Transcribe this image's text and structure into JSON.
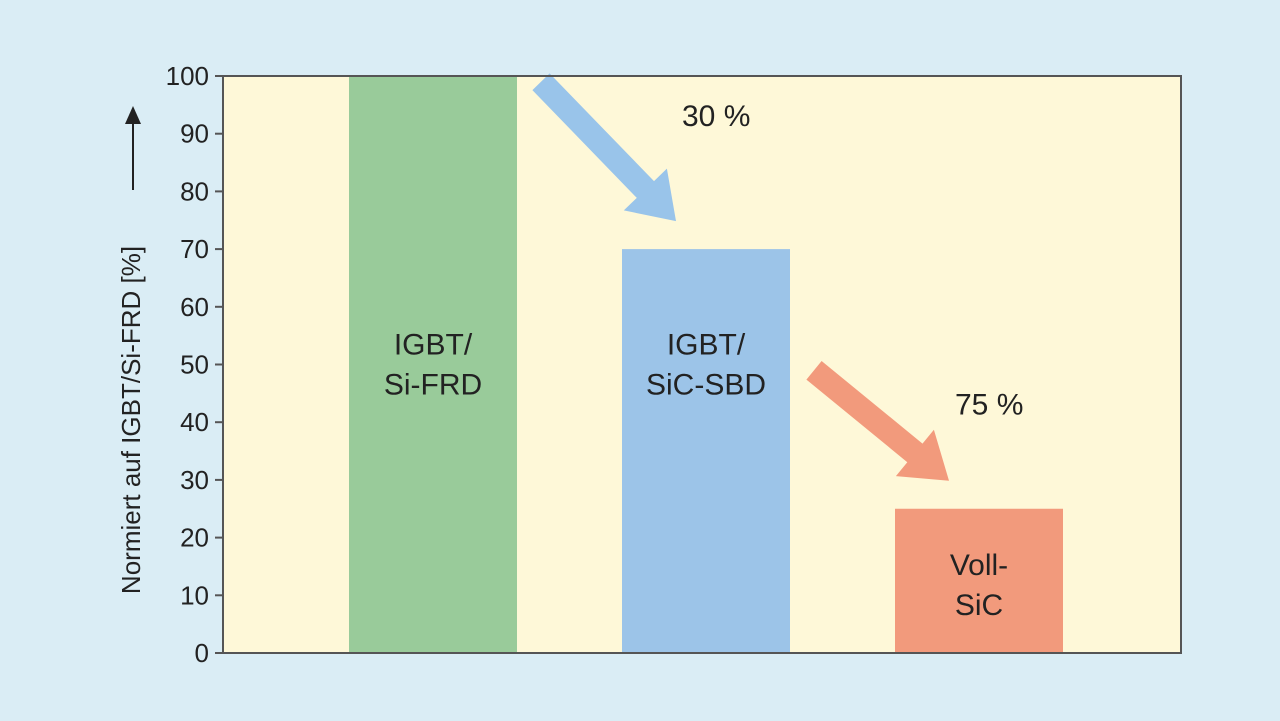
{
  "chart_data": {
    "type": "bar",
    "ylabel": "Normiert auf IGBT/Si-FRD [%]",
    "ylim": [
      0,
      100
    ],
    "yticks": [
      0,
      10,
      20,
      30,
      40,
      50,
      60,
      70,
      80,
      90,
      100
    ],
    "grid": false,
    "categories": [
      [
        "IGBT/",
        "Si-FRD"
      ],
      [
        "IGBT/",
        "SiC-SBD"
      ],
      [
        "Voll-",
        "SiC"
      ]
    ],
    "values": [
      100,
      70,
      25
    ],
    "colors": {
      "plot_background": "#fef8d8",
      "page_background": "#daedf5",
      "bars": [
        "#99cb9a",
        "#9cc4e8",
        "#f29a7c"
      ],
      "arrows": [
        "#99c4ea",
        "#f29a7c"
      ]
    },
    "annotations": [
      {
        "text": "30 %",
        "from_category": 0,
        "to_category": 1,
        "color": "#99c4ea"
      },
      {
        "text": "75 %",
        "from_category": 1,
        "to_category": 2,
        "color": "#f29a7c"
      }
    ]
  }
}
